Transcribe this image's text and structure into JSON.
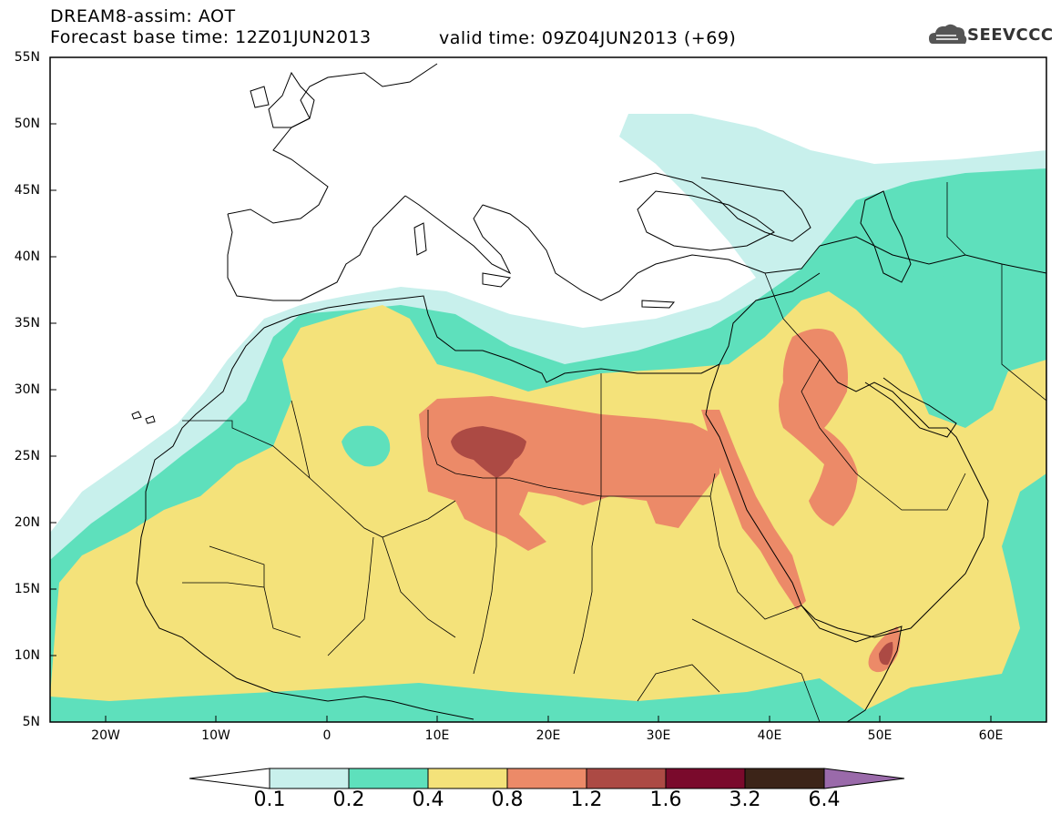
{
  "header": {
    "title": "DREAM8-assim: AOT",
    "base_time": "Forecast base time: 12Z01JUN2013",
    "valid_time": "valid time: 09Z04JUN2013 (+69)",
    "logo_text": "SEEVCCC"
  },
  "axes": {
    "lat_labels": [
      "55N",
      "50N",
      "45N",
      "40N",
      "35N",
      "30N",
      "25N",
      "20N",
      "15N",
      "10N",
      "5N"
    ],
    "lon_labels": [
      "20W",
      "10W",
      "0",
      "10E",
      "20E",
      "30E",
      "40E",
      "50E",
      "60E"
    ]
  },
  "legend": {
    "labels": [
      "0.1",
      "0.2",
      "0.4",
      "0.8",
      "1.2",
      "1.6",
      "3.2",
      "6.4"
    ],
    "colors": [
      "#ffffff",
      "#c8f0ec",
      "#5ee0bc",
      "#f4e27a",
      "#ec8a68",
      "#ac4a44",
      "#7a0a2c",
      "#3c2418",
      "#9a6aaa"
    ]
  },
  "colors": {
    "c01": "#c8f0ec",
    "c02": "#5ee0bc",
    "c04": "#f4e27a",
    "c08": "#ec8a68",
    "c12": "#ac4a44"
  }
}
